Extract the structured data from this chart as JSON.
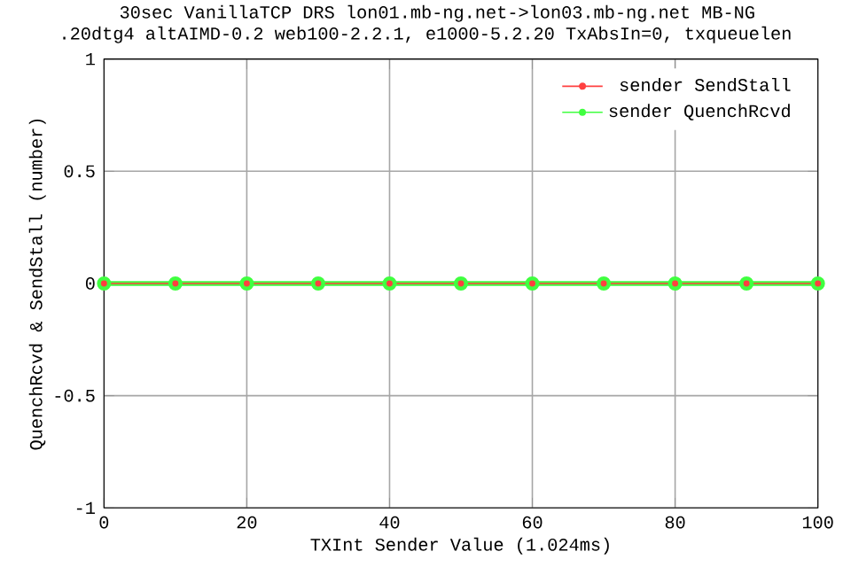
{
  "chart_data": {
    "type": "line",
    "title": "30sec VanillaTCP DRS lon01.mb-ng.net->lon03.mb-ng.net MB-NG",
    "subtitle": ".20dtg4 altAIMD-0.2 web100-2.2.1, e1000-5.2.20 TxAbsIn=0, txqueuelen",
    "xlabel": "TXInt Sender Value (1.024ms)",
    "ylabel": "QuenchRcvd & SendStall (number)",
    "x": [
      0,
      10,
      20,
      30,
      40,
      50,
      60,
      70,
      80,
      90,
      100
    ],
    "series": [
      {
        "name": "sender SendStall",
        "color": "#ff4040",
        "values": [
          0,
          0,
          0,
          0,
          0,
          0,
          0,
          0,
          0,
          0,
          0
        ]
      },
      {
        "name": "sender QuenchRcvd",
        "color": "#40ff40",
        "values": [
          0,
          0,
          0,
          0,
          0,
          0,
          0,
          0,
          0,
          0,
          0
        ]
      }
    ],
    "xlim": [
      0,
      100
    ],
    "xticks": [
      0,
      20,
      40,
      60,
      80,
      100
    ],
    "ylim": [
      -1,
      1
    ],
    "yticks": [
      -1,
      -0.5,
      0,
      0.5,
      1
    ],
    "grid": true,
    "legend": "top right",
    "marker": "circle",
    "line_style": "solid"
  }
}
